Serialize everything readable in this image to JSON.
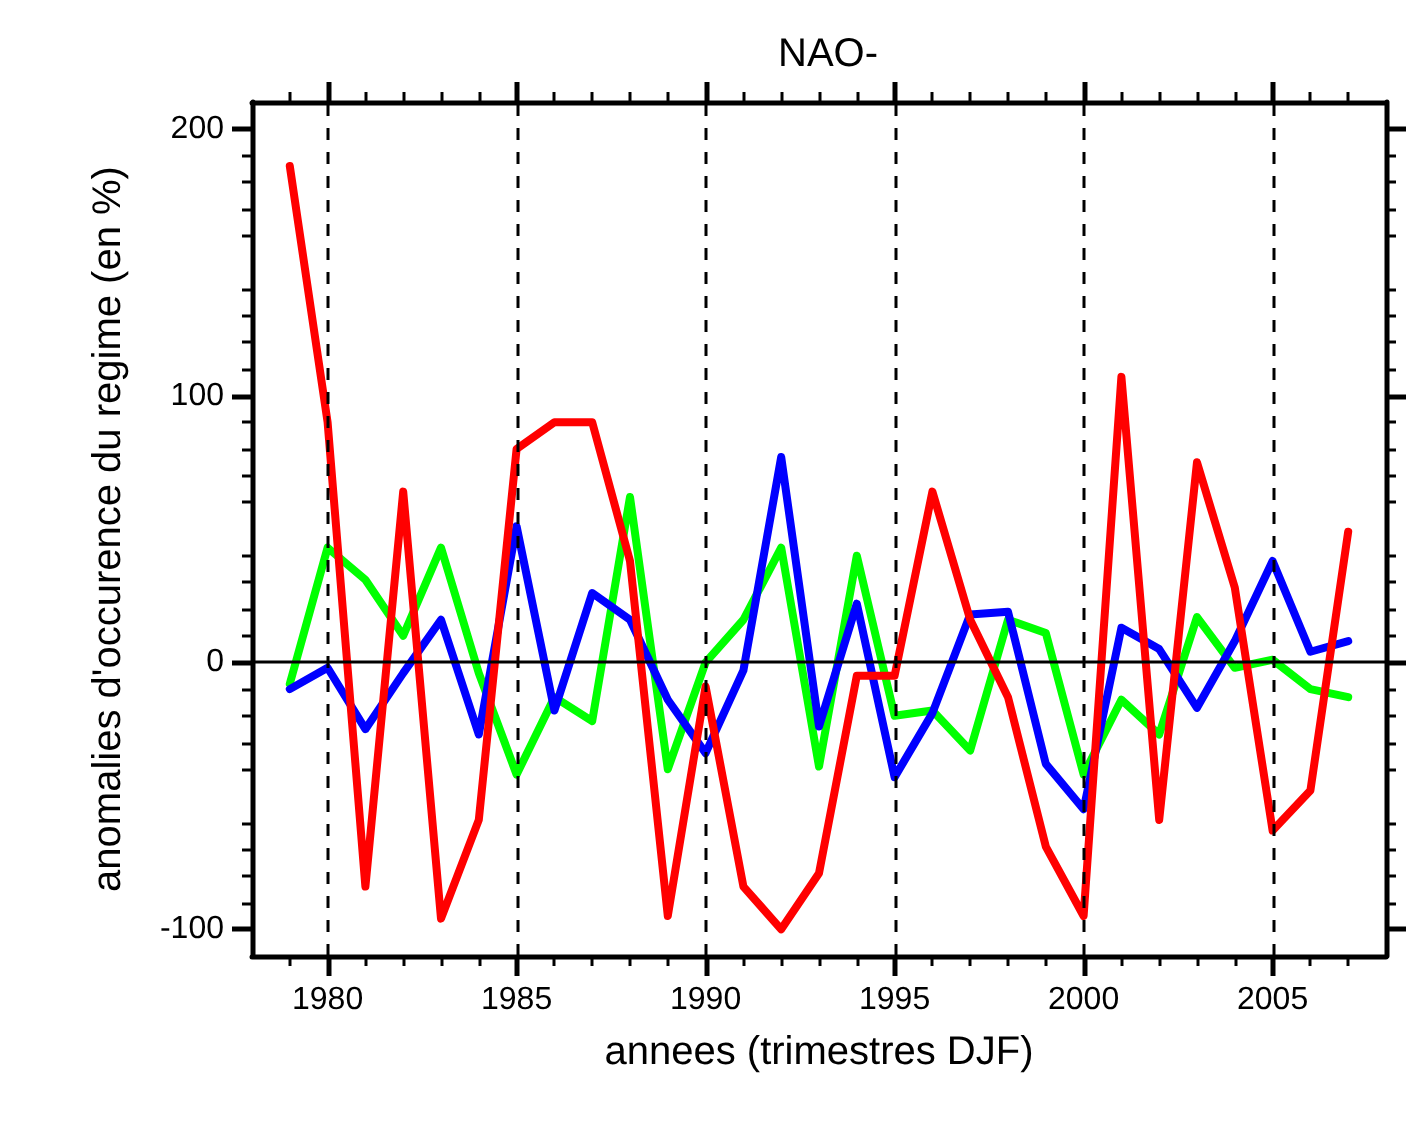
{
  "chart_data": {
    "type": "line",
    "title": "NAO-",
    "xlabel": "annees (trimestres DJF)",
    "ylabel": "anomalies d'occurence du regime (en %)",
    "x": [
      1979,
      1980,
      1981,
      1982,
      1983,
      1984,
      1985,
      1986,
      1987,
      1988,
      1989,
      1990,
      1991,
      1992,
      1993,
      1994,
      1995,
      1996,
      1997,
      1998,
      1999,
      2000,
      2001,
      2002,
      2003,
      2004,
      2005,
      2006,
      2007
    ],
    "series": [
      {
        "color": "#00ff00",
        "values": [
          -8,
          43,
          31,
          10,
          43,
          -4,
          -42,
          -13,
          -22,
          62,
          -40,
          0,
          16,
          43,
          -39,
          40,
          -20,
          -18,
          -33,
          16,
          11,
          -42,
          -14,
          -27,
          17,
          -2,
          1,
          -10,
          -13
        ]
      },
      {
        "color": "#0000ff",
        "values": [
          -10,
          -2,
          -25,
          -4,
          16,
          -27,
          51,
          -18,
          26,
          16,
          -14,
          -34,
          -3,
          77,
          -24,
          22,
          -43,
          -19,
          18,
          19,
          -38,
          -55,
          13,
          5,
          -17,
          8,
          38,
          4,
          8
        ]
      },
      {
        "color": "#ff0000",
        "values": [
          186,
          90,
          -84,
          64,
          -96,
          -59,
          80,
          90,
          90,
          38,
          -95,
          -9,
          -84,
          -100,
          -79,
          -5,
          -5,
          64,
          16,
          -13,
          -69,
          -95,
          107,
          -59,
          75,
          28,
          -63,
          -48,
          49
        ]
      }
    ],
    "xlim": [
      1978,
      2008
    ],
    "xticks": [
      1980,
      1985,
      1990,
      1995,
      2000,
      2005
    ],
    "ylim": [
      -110,
      210
    ],
    "yticks": [
      -100,
      0,
      100,
      200
    ],
    "grid": "x",
    "marker": "none",
    "line_style": "solid",
    "ref_lines": [
      {
        "axis": "y",
        "value": 0,
        "color": "#000000"
      }
    ]
  }
}
